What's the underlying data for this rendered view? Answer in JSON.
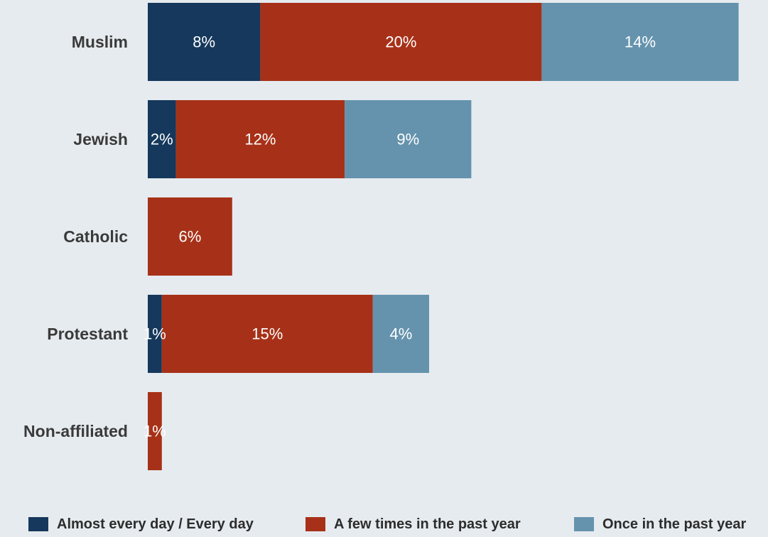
{
  "chart_data": {
    "type": "bar",
    "orientation": "horizontal",
    "stacked": true,
    "categories": [
      "Muslim",
      "Jewish",
      "Catholic",
      "Protestant",
      "Non-affiliated"
    ],
    "series": [
      {
        "name": "Almost every day / Every day",
        "color": "#15385c",
        "values": [
          8,
          2,
          0,
          1,
          0
        ],
        "labels": [
          "8%",
          "2%",
          "",
          "1%",
          ""
        ]
      },
      {
        "name": "A few times in the past year",
        "color": "#a73118",
        "values": [
          20,
          12,
          6,
          15,
          1
        ],
        "labels": [
          "20%",
          "12%",
          "6%",
          "15%",
          "1%"
        ]
      },
      {
        "name": "Once in the past year",
        "color": "#6593ad",
        "values": [
          14,
          9,
          0,
          4,
          0
        ],
        "labels": [
          "14%",
          "9%",
          "",
          "4%",
          ""
        ]
      }
    ],
    "xlim": [
      0,
      42
    ],
    "grid": false,
    "legend_position": "bottom"
  }
}
